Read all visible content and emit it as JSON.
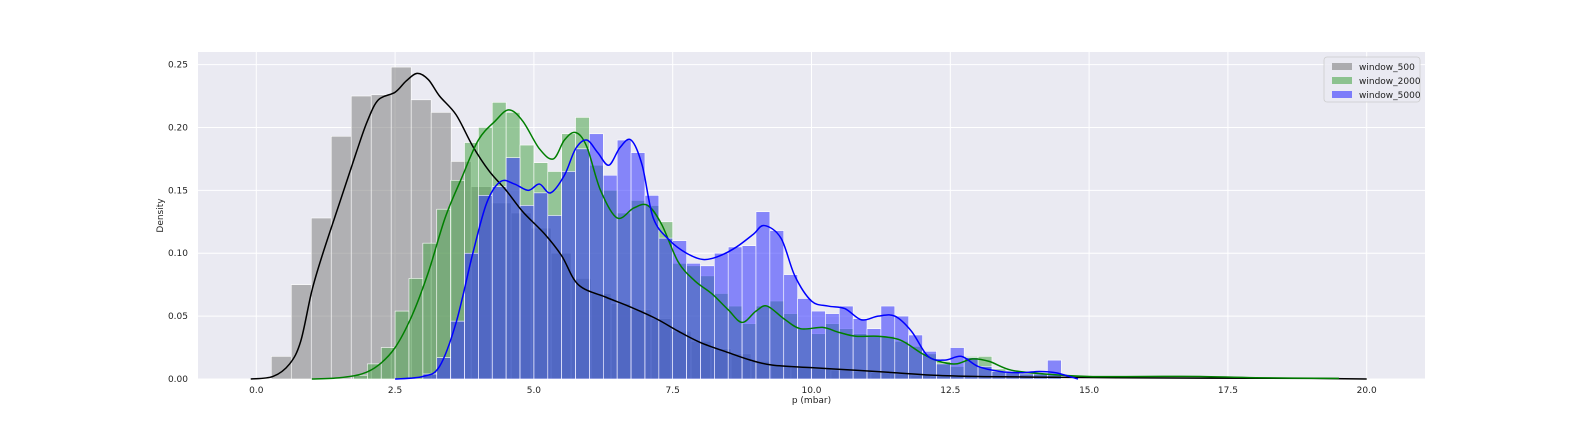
{
  "chart_data": {
    "type": "histogram",
    "title": "",
    "xlabel": "p (mbar)",
    "ylabel": "Density",
    "xlim": [
      -1.05,
      21.05
    ],
    "ylim": [
      0,
      0.26
    ],
    "xticks": [
      0.0,
      2.5,
      5.0,
      7.5,
      10.0,
      12.5,
      15.0,
      17.5,
      20.0
    ],
    "xtick_labels": [
      "0.0",
      "2.5",
      "5.0",
      "7.5",
      "10.0",
      "12.5",
      "15.0",
      "17.5",
      "20.0"
    ],
    "yticks": [
      0.0,
      0.05,
      0.1,
      0.15,
      0.2,
      0.25
    ],
    "ytick_labels": [
      "0.00",
      "0.05",
      "0.10",
      "0.15",
      "0.20",
      "0.25"
    ],
    "grid": true,
    "legend_position": "top-right",
    "series": [
      {
        "name": "window_500",
        "color": "#808080",
        "kde_color": "#000000",
        "bin_width": 0.36,
        "bins": [
          [
            0.45,
            0.018
          ],
          [
            0.81,
            0.075
          ],
          [
            1.17,
            0.128
          ],
          [
            1.53,
            0.193
          ],
          [
            1.89,
            0.225
          ],
          [
            2.25,
            0.226
          ],
          [
            2.61,
            0.248
          ],
          [
            2.97,
            0.222
          ],
          [
            3.33,
            0.212
          ],
          [
            3.69,
            0.173
          ],
          [
            4.05,
            0.153
          ],
          [
            4.41,
            0.14
          ],
          [
            4.77,
            0.132
          ],
          [
            5.13,
            0.12
          ],
          [
            5.49,
            0.1
          ],
          [
            5.85,
            0.08
          ],
          [
            6.21,
            0.068
          ],
          [
            6.57,
            0.06
          ],
          [
            6.93,
            0.055
          ],
          [
            7.29,
            0.048
          ],
          [
            7.65,
            0.038
          ],
          [
            8.01,
            0.03
          ],
          [
            8.37,
            0.024
          ],
          [
            8.73,
            0.02
          ],
          [
            9.09,
            0.014
          ],
          [
            9.45,
            0.011
          ],
          [
            9.81,
            0.009
          ],
          [
            10.17,
            0.008
          ],
          [
            10.53,
            0.007
          ],
          [
            10.89,
            0.006
          ],
          [
            11.25,
            0.005
          ],
          [
            11.61,
            0.004
          ],
          [
            11.97,
            0.003
          ],
          [
            12.33,
            0.002
          ],
          [
            12.69,
            0.002
          ],
          [
            13.05,
            0.001
          ],
          [
            13.41,
            0.001
          ],
          [
            13.77,
            0.001
          ]
        ],
        "kde": [
          [
            -0.1,
            0.0
          ],
          [
            0.3,
            0.002
          ],
          [
            0.6,
            0.012
          ],
          [
            0.8,
            0.03
          ],
          [
            1.0,
            0.07
          ],
          [
            1.2,
            0.1
          ],
          [
            1.5,
            0.14
          ],
          [
            1.8,
            0.18
          ],
          [
            2.0,
            0.205
          ],
          [
            2.2,
            0.222
          ],
          [
            2.5,
            0.228
          ],
          [
            2.7,
            0.237
          ],
          [
            2.9,
            0.243
          ],
          [
            3.1,
            0.238
          ],
          [
            3.3,
            0.225
          ],
          [
            3.6,
            0.21
          ],
          [
            3.9,
            0.185
          ],
          [
            4.2,
            0.165
          ],
          [
            4.5,
            0.15
          ],
          [
            4.8,
            0.133
          ],
          [
            5.2,
            0.115
          ],
          [
            5.5,
            0.098
          ],
          [
            5.8,
            0.075
          ],
          [
            6.3,
            0.065
          ],
          [
            6.7,
            0.058
          ],
          [
            7.2,
            0.048
          ],
          [
            7.6,
            0.038
          ],
          [
            8.0,
            0.029
          ],
          [
            8.5,
            0.021
          ],
          [
            8.9,
            0.015
          ],
          [
            9.3,
            0.011
          ],
          [
            10.0,
            0.009
          ],
          [
            10.8,
            0.007
          ],
          [
            11.5,
            0.005
          ],
          [
            12.2,
            0.003
          ],
          [
            13.0,
            0.002
          ],
          [
            14.0,
            0.0015
          ],
          [
            15.5,
            0.001
          ],
          [
            17.0,
            0.0007
          ],
          [
            19.0,
            0.0005
          ],
          [
            20.0,
            0.0
          ]
        ]
      },
      {
        "name": "window_2000",
        "color": "#4ca64c",
        "kde_color": "#007f00",
        "bin_width": 0.25,
        "bins": [
          [
            1.875,
            0.003
          ],
          [
            2.125,
            0.012
          ],
          [
            2.375,
            0.025
          ],
          [
            2.625,
            0.054
          ],
          [
            2.875,
            0.08
          ],
          [
            3.125,
            0.108
          ],
          [
            3.375,
            0.135
          ],
          [
            3.625,
            0.158
          ],
          [
            3.875,
            0.188
          ],
          [
            4.125,
            0.2
          ],
          [
            4.375,
            0.22
          ],
          [
            4.625,
            0.212
          ],
          [
            4.875,
            0.186
          ],
          [
            5.125,
            0.172
          ],
          [
            5.375,
            0.165
          ],
          [
            5.625,
            0.195
          ],
          [
            5.875,
            0.208
          ],
          [
            6.125,
            0.17
          ],
          [
            6.375,
            0.15
          ],
          [
            6.625,
            0.132
          ],
          [
            6.875,
            0.142
          ],
          [
            7.125,
            0.138
          ],
          [
            7.375,
            0.125
          ],
          [
            7.625,
            0.092
          ],
          [
            7.875,
            0.09
          ],
          [
            8.125,
            0.082
          ],
          [
            8.375,
            0.068
          ],
          [
            8.625,
            0.058
          ],
          [
            8.875,
            0.044
          ],
          [
            9.125,
            0.058
          ],
          [
            9.375,
            0.062
          ],
          [
            9.625,
            0.052
          ],
          [
            9.875,
            0.04
          ],
          [
            10.125,
            0.036
          ],
          [
            10.375,
            0.044
          ],
          [
            10.625,
            0.04
          ],
          [
            10.875,
            0.036
          ],
          [
            11.125,
            0.034
          ],
          [
            11.375,
            0.034
          ],
          [
            11.625,
            0.03
          ],
          [
            11.875,
            0.026
          ],
          [
            12.125,
            0.02
          ],
          [
            12.375,
            0.014
          ],
          [
            12.625,
            0.01
          ],
          [
            12.875,
            0.018
          ],
          [
            13.125,
            0.018
          ],
          [
            13.375,
            0.008
          ],
          [
            13.625,
            0.006
          ],
          [
            13.875,
            0.005
          ],
          [
            14.125,
            0.004
          ],
          [
            14.375,
            0.003
          ]
        ],
        "kde": [
          [
            1.0,
            0.0
          ],
          [
            1.5,
            0.001
          ],
          [
            1.9,
            0.004
          ],
          [
            2.2,
            0.011
          ],
          [
            2.5,
            0.025
          ],
          [
            2.8,
            0.05
          ],
          [
            3.1,
            0.085
          ],
          [
            3.4,
            0.128
          ],
          [
            3.7,
            0.16
          ],
          [
            4.0,
            0.19
          ],
          [
            4.3,
            0.205
          ],
          [
            4.55,
            0.214
          ],
          [
            4.8,
            0.205
          ],
          [
            5.1,
            0.183
          ],
          [
            5.35,
            0.175
          ],
          [
            5.55,
            0.19
          ],
          [
            5.75,
            0.196
          ],
          [
            5.95,
            0.185
          ],
          [
            6.2,
            0.15
          ],
          [
            6.5,
            0.128
          ],
          [
            6.8,
            0.136
          ],
          [
            7.05,
            0.138
          ],
          [
            7.3,
            0.123
          ],
          [
            7.6,
            0.093
          ],
          [
            7.9,
            0.078
          ],
          [
            8.2,
            0.068
          ],
          [
            8.5,
            0.055
          ],
          [
            8.75,
            0.045
          ],
          [
            9.0,
            0.054
          ],
          [
            9.2,
            0.058
          ],
          [
            9.5,
            0.048
          ],
          [
            9.8,
            0.04
          ],
          [
            10.2,
            0.041
          ],
          [
            10.5,
            0.037
          ],
          [
            10.8,
            0.034
          ],
          [
            11.2,
            0.034
          ],
          [
            11.6,
            0.031
          ],
          [
            12.0,
            0.02
          ],
          [
            12.3,
            0.014
          ],
          [
            12.6,
            0.012
          ],
          [
            12.9,
            0.016
          ],
          [
            13.2,
            0.014
          ],
          [
            13.6,
            0.007
          ],
          [
            14.2,
            0.004
          ],
          [
            15.0,
            0.002
          ],
          [
            16.0,
            0.002
          ],
          [
            17.0,
            0.002
          ],
          [
            18.0,
            0.001
          ],
          [
            19.5,
            0.0005
          ]
        ]
      },
      {
        "name": "window_5000",
        "color": "#3232ff",
        "kde_color": "#0000ff",
        "bin_width": 0.25,
        "bins": [
          [
            3.125,
            0.004
          ],
          [
            3.375,
            0.017
          ],
          [
            3.625,
            0.046
          ],
          [
            3.875,
            0.1
          ],
          [
            4.125,
            0.146
          ],
          [
            4.375,
            0.153
          ],
          [
            4.625,
            0.176
          ],
          [
            4.875,
            0.138
          ],
          [
            5.125,
            0.148
          ],
          [
            5.375,
            0.13
          ],
          [
            5.625,
            0.165
          ],
          [
            5.875,
            0.183
          ],
          [
            6.125,
            0.195
          ],
          [
            6.375,
            0.162
          ],
          [
            6.625,
            0.19
          ],
          [
            6.875,
            0.18
          ],
          [
            7.125,
            0.146
          ],
          [
            7.375,
            0.112
          ],
          [
            7.625,
            0.11
          ],
          [
            7.875,
            0.092
          ],
          [
            8.125,
            0.09
          ],
          [
            8.375,
            0.1
          ],
          [
            8.625,
            0.105
          ],
          [
            8.875,
            0.106
          ],
          [
            9.125,
            0.133
          ],
          [
            9.375,
            0.118
          ],
          [
            9.625,
            0.083
          ],
          [
            9.875,
            0.064
          ],
          [
            10.125,
            0.054
          ],
          [
            10.375,
            0.052
          ],
          [
            10.625,
            0.058
          ],
          [
            10.875,
            0.048
          ],
          [
            11.125,
            0.04
          ],
          [
            11.375,
            0.058
          ],
          [
            11.625,
            0.05
          ],
          [
            11.875,
            0.035
          ],
          [
            12.125,
            0.022
          ],
          [
            12.375,
            0.012
          ],
          [
            12.625,
            0.025
          ],
          [
            12.875,
            0.017
          ],
          [
            13.125,
            0.01
          ],
          [
            13.375,
            0.006
          ],
          [
            13.625,
            0.005
          ],
          [
            13.875,
            0.004
          ],
          [
            14.125,
            0.004
          ],
          [
            14.375,
            0.015
          ]
        ],
        "kde": [
          [
            2.5,
            0.0
          ],
          [
            3.0,
            0.002
          ],
          [
            3.3,
            0.01
          ],
          [
            3.6,
            0.045
          ],
          [
            3.9,
            0.1
          ],
          [
            4.15,
            0.14
          ],
          [
            4.4,
            0.157
          ],
          [
            4.65,
            0.155
          ],
          [
            4.9,
            0.15
          ],
          [
            5.1,
            0.155
          ],
          [
            5.3,
            0.148
          ],
          [
            5.55,
            0.162
          ],
          [
            5.75,
            0.183
          ],
          [
            5.95,
            0.19
          ],
          [
            6.15,
            0.18
          ],
          [
            6.35,
            0.17
          ],
          [
            6.55,
            0.184
          ],
          [
            6.75,
            0.19
          ],
          [
            6.95,
            0.17
          ],
          [
            7.15,
            0.128
          ],
          [
            7.45,
            0.11
          ],
          [
            7.75,
            0.1
          ],
          [
            8.05,
            0.095
          ],
          [
            8.35,
            0.098
          ],
          [
            8.65,
            0.105
          ],
          [
            8.95,
            0.115
          ],
          [
            9.15,
            0.122
          ],
          [
            9.45,
            0.112
          ],
          [
            9.7,
            0.082
          ],
          [
            10.0,
            0.062
          ],
          [
            10.3,
            0.058
          ],
          [
            10.6,
            0.056
          ],
          [
            10.9,
            0.047
          ],
          [
            11.2,
            0.05
          ],
          [
            11.5,
            0.05
          ],
          [
            11.8,
            0.038
          ],
          [
            12.1,
            0.018
          ],
          [
            12.4,
            0.015
          ],
          [
            12.7,
            0.018
          ],
          [
            13.0,
            0.01
          ],
          [
            13.4,
            0.006
          ],
          [
            13.8,
            0.005
          ],
          [
            14.1,
            0.006
          ],
          [
            14.4,
            0.005
          ],
          [
            14.8,
            0.0
          ]
        ]
      }
    ]
  }
}
